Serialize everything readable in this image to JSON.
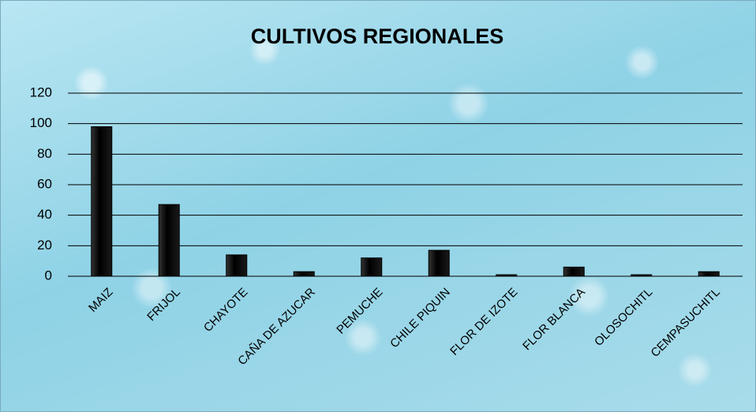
{
  "chart_data": {
    "type": "bar",
    "title": "CULTIVOS REGIONALES",
    "categories": [
      "MAIZ",
      "FRIJOL",
      "CHAYOTE",
      "CAÑA DE AZUCAR",
      "PEMUCHE",
      "CHILE PIQUIN",
      "FLOR DE IZOTE",
      "FLOR BLANCA",
      "OLOSOCHITL",
      "CEMPASUCHITL"
    ],
    "values": [
      98,
      47,
      14,
      3,
      12,
      17,
      1,
      6,
      1,
      3
    ],
    "color": "#000000",
    "ylim": [
      0,
      120
    ],
    "yticks": [
      0,
      20,
      40,
      60,
      80,
      100,
      120
    ],
    "grid": true
  }
}
